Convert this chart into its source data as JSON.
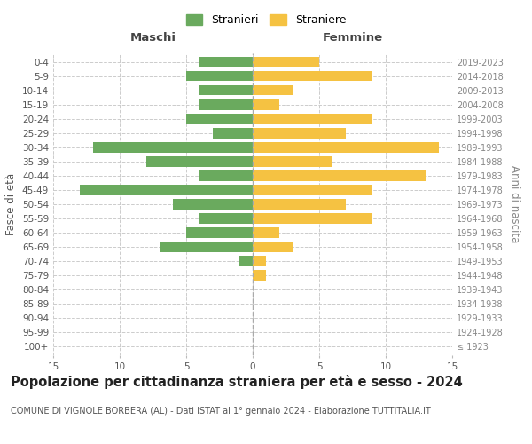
{
  "age_groups": [
    "100+",
    "95-99",
    "90-94",
    "85-89",
    "80-84",
    "75-79",
    "70-74",
    "65-69",
    "60-64",
    "55-59",
    "50-54",
    "45-49",
    "40-44",
    "35-39",
    "30-34",
    "25-29",
    "20-24",
    "15-19",
    "10-14",
    "5-9",
    "0-4"
  ],
  "birth_years": [
    "≤ 1923",
    "1924-1928",
    "1929-1933",
    "1934-1938",
    "1939-1943",
    "1944-1948",
    "1949-1953",
    "1954-1958",
    "1959-1963",
    "1964-1968",
    "1969-1973",
    "1974-1978",
    "1979-1983",
    "1984-1988",
    "1989-1993",
    "1994-1998",
    "1999-2003",
    "2004-2008",
    "2009-2013",
    "2014-2018",
    "2019-2023"
  ],
  "males": [
    0,
    0,
    0,
    0,
    0,
    0,
    1,
    7,
    5,
    4,
    6,
    13,
    4,
    8,
    12,
    3,
    5,
    4,
    4,
    5,
    4
  ],
  "females": [
    0,
    0,
    0,
    0,
    0,
    1,
    1,
    3,
    2,
    9,
    7,
    9,
    13,
    6,
    14,
    7,
    9,
    2,
    3,
    9,
    5
  ],
  "color_male": "#6aaa5e",
  "color_female": "#f5c242",
  "xlim": 15,
  "title": "Popolazione per cittadinanza straniera per età e sesso - 2024",
  "subtitle": "COMUNE DI VIGNOLE BORBERA (AL) - Dati ISTAT al 1° gennaio 2024 - Elaborazione TUTTITALIA.IT",
  "ylabel_left": "Fasce di età",
  "ylabel_right": "Anni di nascita",
  "legend_male": "Stranieri",
  "legend_female": "Straniere",
  "header_male": "Maschi",
  "header_female": "Femmine",
  "bg_color": "#ffffff",
  "grid_color": "#cccccc",
  "bar_height": 0.72,
  "title_fontsize": 10.5,
  "subtitle_fontsize": 7.0,
  "tick_fontsize": 7.5,
  "label_fontsize": 8.5
}
